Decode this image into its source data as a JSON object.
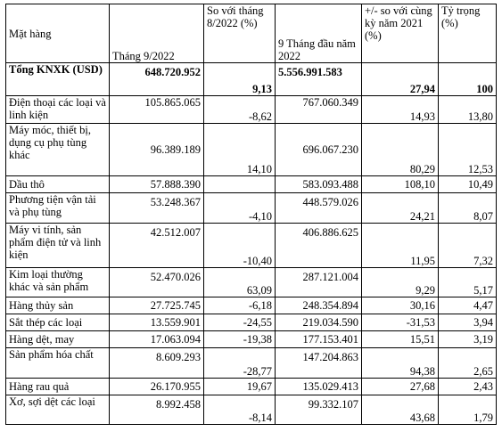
{
  "headers": {
    "item": "Mặt hàng",
    "month": "Tháng 9/2022",
    "vs_prev": "So với tháng 8/2022 (%)",
    "ytd": "9 Tháng đầu năm 2022",
    "yoy": "+/- so với cùng kỳ năm 2021 (%)",
    "share": "Tỷ trọng (%)"
  },
  "total": {
    "name": "Tổng KNXK (USD)",
    "month": "648.720.952",
    "vs_prev": "9,13",
    "ytd": "5.556.991.583",
    "yoy": "27,94",
    "share": "100"
  },
  "rows": [
    {
      "name": "Điện thoại các loại và linh kiện",
      "month": "105.865.065",
      "vs_prev": "-8,62",
      "ytd": "767.060.349",
      "yoy": "14,93",
      "share": "13,80"
    },
    {
      "name": "Máy móc, thiết bị, dụng cụ phụ tùng khác",
      "month": "96.389.189",
      "vs_prev": "14,10",
      "ytd": "696.067.230",
      "yoy": "80,29",
      "share": "12,53"
    },
    {
      "name": "Dầu thô",
      "month": "57.888.390",
      "vs_prev": "",
      "ytd": "583.093.488",
      "yoy": "108,10",
      "share": "10,49"
    },
    {
      "name": "Phương tiện vận tải và phụ tùng",
      "month": "53.248.367",
      "vs_prev": "-4,10",
      "ytd": "448.579.026",
      "yoy": "24,21",
      "share": "8,07"
    },
    {
      "name": "Máy vi tính, sản phẩm điện tử và linh kiện",
      "month": "42.512.007",
      "vs_prev": "-10,40",
      "ytd": "406.886.625",
      "yoy": "11,95",
      "share": "7,32"
    },
    {
      "name": "Kim loại thường khác và sản phẩm",
      "month": "52.470.026",
      "vs_prev": "63,09",
      "ytd": "287.121.004",
      "yoy": "9,29",
      "share": "5,17"
    },
    {
      "name": "Hàng thủy sản",
      "month": "27.725.745",
      "vs_prev": "-6,18",
      "ytd": "248.354.894",
      "yoy": "30,16",
      "share": "4,47"
    },
    {
      "name": "Sắt thép các loại",
      "month": "13.559.901",
      "vs_prev": "-24,55",
      "ytd": "219.034.590",
      "yoy": "-31,53",
      "share": "3,94"
    },
    {
      "name": "Hàng dệt, may",
      "month": "17.063.094",
      "vs_prev": "-19,38",
      "ytd": "177.153.401",
      "yoy": "15,51",
      "share": "3,19"
    },
    {
      "name": "Sản phẩm hóa chất",
      "month": "8.609.293",
      "vs_prev": "-28,77",
      "ytd": "147.204.863",
      "yoy": "94,38",
      "share": "2,65"
    },
    {
      "name": "Hàng rau quả",
      "month": "26.170.955",
      "vs_prev": "19,67",
      "ytd": "135.029.413",
      "yoy": "27,68",
      "share": "2,43"
    },
    {
      "name": "Xơ, sợi dệt các loại",
      "month": "8.992.458",
      "vs_prev": "-8,14",
      "ytd": "99.332.107",
      "yoy": "43,68",
      "share": "1,79"
    }
  ]
}
